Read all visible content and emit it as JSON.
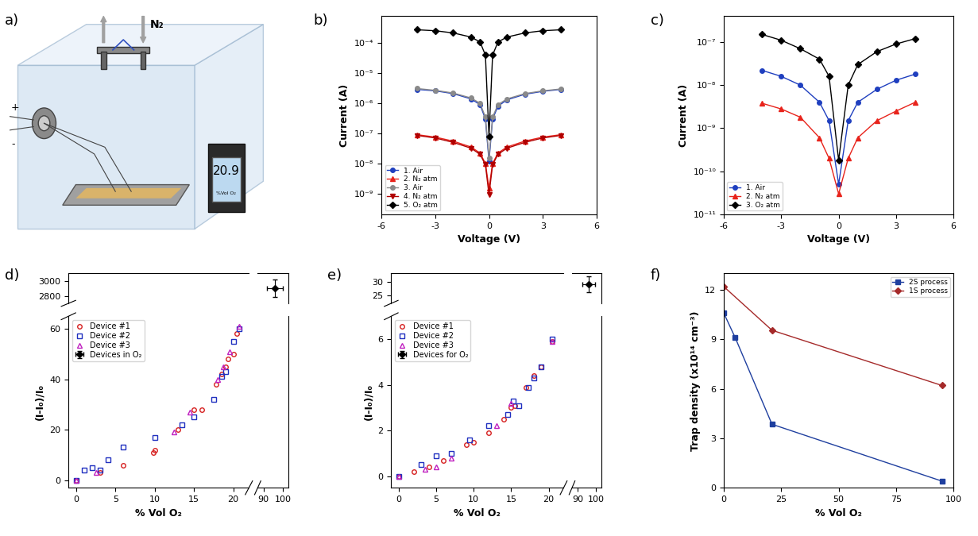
{
  "chart_data": [
    {
      "type": "diagram",
      "title": "a)",
      "texts": {
        "gas": "N₂",
        "meter_value": "20.9",
        "meter_unit": "%Vol O₂",
        "minus": "-",
        "plus": "+"
      }
    },
    {
      "type": "line",
      "title": "b)",
      "x_label": "Voltage (V)",
      "y_label": "Current (A)",
      "log": "y",
      "legend": "lower left",
      "x": [
        -4,
        -3,
        -2,
        -1,
        -0.5,
        -0.2,
        0,
        0.2,
        0.5,
        1,
        2,
        3,
        4
      ],
      "xlim": [
        -6,
        6
      ],
      "xticks": [
        -6,
        -3,
        0,
        3,
        6
      ],
      "ylim": [
        2e-10,
        0.0008
      ],
      "yticks": [
        {
          "value": 1e-09,
          "label": "10⁻⁹"
        },
        {
          "value": 1e-08,
          "label": "10⁻⁸"
        },
        {
          "value": 1e-07,
          "label": "10⁻⁷"
        },
        {
          "value": 1e-06,
          "label": "10⁻⁶"
        },
        {
          "value": 1e-05,
          "label": "10⁻⁵"
        },
        {
          "value": 0.0001,
          "label": "10⁻⁴"
        }
      ],
      "series": [
        {
          "name": "1. Air",
          "color": "#1f3fbf",
          "marker": "circle",
          "line_style": "solid",
          "values": [
            2.9e-06,
            2.6e-06,
            2.1e-06,
            1.4e-06,
            9e-07,
            3e-07,
            1.2e-08,
            3e-07,
            8e-07,
            1.3e-06,
            2e-06,
            2.5e-06,
            2.9e-06
          ]
        },
        {
          "name": "2. N₂ atm",
          "color": "#e8231b",
          "marker": "triangle_up",
          "line_style": "solid",
          "values": [
            9e-08,
            7.5e-08,
            5.5e-08,
            3.5e-08,
            2.2e-08,
            1e-08,
            1.5e-09,
            1e-08,
            2.2e-08,
            3.5e-08,
            5.5e-08,
            7.5e-08,
            9e-08
          ]
        },
        {
          "name": "3. Air",
          "color": "#8a8a8a",
          "marker": "circle",
          "line_style": "solid",
          "values": [
            3.1e-06,
            2.7e-06,
            2.2e-06,
            1.5e-06,
            1e-06,
            3.5e-07,
            1.5e-08,
            3.5e-07,
            9e-07,
            1.4e-06,
            2.1e-06,
            2.6e-06,
            3e-06
          ]
        },
        {
          "name": "4. N₂ atm",
          "color": "#b00000",
          "marker": "triangle_down",
          "line_style": "solid",
          "values": [
            8.5e-08,
            7e-08,
            5e-08,
            3.2e-08,
            2e-08,
            9e-09,
            9e-10,
            9e-09,
            2e-08,
            3.2e-08,
            5e-08,
            7e-08,
            8.5e-08
          ]
        },
        {
          "name": "5. O₂ atm",
          "color": "#000000",
          "marker": "diamond",
          "line_style": "solid",
          "values": [
            0.00028,
            0.00026,
            0.00022,
            0.00016,
            0.00011,
            4e-05,
            8e-08,
            4e-05,
            0.00011,
            0.00016,
            0.00022,
            0.00026,
            0.00028
          ]
        }
      ]
    },
    {
      "type": "line",
      "title": "c)",
      "x_label": "Voltage (V)",
      "y_label": "Current (A)",
      "log": "y",
      "legend": "lower left",
      "x": [
        -4,
        -3,
        -2,
        -1,
        -0.5,
        0,
        0.5,
        1,
        2,
        3,
        4
      ],
      "xlim": [
        -6,
        6
      ],
      "xticks": [
        -6,
        -3,
        0,
        3,
        6
      ],
      "ylim": [
        1e-11,
        4e-07
      ],
      "yticks": [
        {
          "value": 1e-11,
          "label": "10⁻¹¹"
        },
        {
          "value": 1e-10,
          "label": "10⁻¹⁰"
        },
        {
          "value": 1e-09,
          "label": "10⁻⁹"
        },
        {
          "value": 1e-08,
          "label": "10⁻⁸"
        },
        {
          "value": 1e-07,
          "label": "10⁻⁷"
        }
      ],
      "series": [
        {
          "name": "1. Air",
          "color": "#1f3fbf",
          "marker": "circle",
          "line_style": "solid",
          "values": [
            2.2e-08,
            1.6e-08,
            1e-08,
            4e-09,
            1.5e-09,
            5e-11,
            1.5e-09,
            4e-09,
            8e-09,
            1.3e-08,
            1.8e-08
          ]
        },
        {
          "name": "2. N₂ atm",
          "color": "#e8231b",
          "marker": "triangle_up",
          "line_style": "solid",
          "values": [
            3.8e-09,
            2.8e-09,
            1.8e-09,
            6e-10,
            2e-10,
            3e-11,
            2e-10,
            6e-10,
            1.5e-09,
            2.5e-09,
            4e-09
          ]
        },
        {
          "name": "3. O₂ atm",
          "color": "#000000",
          "marker": "diamond",
          "line_style": "solid",
          "values": [
            1.5e-07,
            1.1e-07,
            7e-08,
            4e-08,
            1.6e-08,
            1.8e-10,
            1e-08,
            3e-08,
            6e-08,
            9e-08,
            1.2e-07
          ]
        }
      ]
    },
    {
      "type": "scatter",
      "title": "d)",
      "x_label": "% Vol O₂",
      "y_label": "(I-I₀)/I₀",
      "legend": "upper left",
      "xlim": [
        [
          -1,
          22
        ],
        [
          87,
          103
        ]
      ],
      "xticks": [
        [
          0,
          5,
          10,
          15,
          20
        ],
        [
          90,
          100
        ]
      ],
      "ylim": [
        [
          -3,
          65
        ],
        [
          2700,
          3100
        ]
      ],
      "yticks": [
        [
          0,
          20,
          40,
          60
        ],
        [
          2800,
          3000
        ]
      ],
      "series": [
        {
          "name": "Device #1",
          "color": "#d62020",
          "marker": "open_circle",
          "line_style": "none",
          "x": [
            0,
            3,
            6,
            9.8,
            10,
            13,
            15,
            16,
            17.8,
            18.5,
            19,
            19.3,
            20,
            20.5
          ],
          "values": [
            0,
            3,
            6,
            11,
            12,
            20,
            28,
            28,
            38,
            42,
            45,
            48,
            50,
            58
          ]
        },
        {
          "name": "Device #2",
          "color": "#2030c0",
          "marker": "open_square",
          "line_style": "none",
          "x": [
            0,
            1,
            2,
            3,
            4,
            6,
            10,
            13.5,
            15,
            17.5,
            18.5,
            19,
            20,
            20.8
          ],
          "values": [
            0,
            4,
            5,
            4,
            8,
            13,
            17,
            22,
            25,
            32,
            41,
            43,
            55,
            60
          ]
        },
        {
          "name": "Device #3",
          "color": "#c020c0",
          "marker": "open_triangle",
          "line_style": "none",
          "x": [
            0,
            2.5,
            12.5,
            14.5,
            18,
            18.7,
            19.5,
            20.8
          ],
          "values": [
            0,
            3,
            19,
            27,
            40,
            45,
            51,
            61
          ]
        },
        {
          "name": "Devices in O₂",
          "color": "#000000",
          "marker": "diamond",
          "line_style": "none",
          "x": [
            96
          ],
          "values": [
            2900
          ],
          "x_error": [
            4
          ],
          "y_error": [
            120
          ]
        }
      ]
    },
    {
      "type": "scatter",
      "title": "e)",
      "x_label": "% Vol O₂",
      "y_label": "(I-I₀)/I₀",
      "legend": "upper left",
      "xlim": [
        [
          -1,
          22
        ],
        [
          87,
          103
        ]
      ],
      "xticks": [
        [
          0,
          5,
          10,
          15,
          20
        ],
        [
          90,
          100
        ]
      ],
      "ylim": [
        [
          -0.5,
          7
        ],
        [
          22,
          33
        ]
      ],
      "yticks": [
        [
          0,
          2,
          4,
          6
        ],
        [
          25,
          30
        ]
      ],
      "series": [
        {
          "name": "Device #1",
          "color": "#d62020",
          "marker": "open_circle",
          "line_style": "none",
          "x": [
            0,
            2,
            4,
            6,
            9,
            10,
            12,
            14,
            15,
            15.5,
            17,
            18,
            19,
            20.5
          ],
          "values": [
            0,
            0.2,
            0.4,
            0.7,
            1.4,
            1.5,
            1.9,
            2.5,
            3.0,
            3.1,
            3.9,
            4.4,
            4.8,
            5.9
          ]
        },
        {
          "name": "Device #2",
          "color": "#2030c0",
          "marker": "open_square",
          "line_style": "none",
          "x": [
            0,
            3,
            5,
            7,
            9.5,
            12,
            14.5,
            15.3,
            16,
            17.3,
            18,
            19,
            20.5
          ],
          "values": [
            0,
            0.5,
            0.9,
            1.0,
            1.6,
            2.2,
            2.7,
            3.3,
            3.1,
            3.9,
            4.3,
            4.8,
            6.0
          ]
        },
        {
          "name": "Device #3",
          "color": "#c020c0",
          "marker": "open_triangle",
          "line_style": "none",
          "x": [
            0,
            3.5,
            5,
            7,
            13,
            15,
            20.5
          ],
          "values": [
            0,
            0.3,
            0.4,
            0.8,
            2.2,
            3.2,
            5.9
          ]
        },
        {
          "name": "Devices for O₂",
          "color": "#000000",
          "marker": "diamond",
          "line_style": "none",
          "x": [
            96
          ],
          "values": [
            29
          ],
          "x_error": [
            3.5
          ],
          "y_error": [
            3
          ]
        }
      ]
    },
    {
      "type": "line",
      "title": "f)",
      "x_label": "% Vol O₂",
      "y_label": "Trap density (x10¹⁴ cm⁻³)",
      "legend": "upper right",
      "xlim": [
        0,
        100
      ],
      "xticks": [
        0,
        25,
        50,
        75,
        100
      ],
      "ylim": [
        0,
        13
      ],
      "yticks": [
        0,
        3,
        6,
        9,
        12
      ],
      "series": [
        {
          "name": "2S process",
          "color": "#1f3f9f",
          "marker": "square",
          "line_style": "solid",
          "x": [
            0,
            5,
            21,
            95
          ],
          "values": [
            10.6,
            9.1,
            3.85,
            0.4
          ]
        },
        {
          "name": "1S process",
          "color": "#a52a2a",
          "marker": "diamond",
          "line_style": "solid",
          "x": [
            0,
            21,
            95
          ],
          "values": [
            12.2,
            9.55,
            6.2
          ]
        }
      ]
    }
  ]
}
